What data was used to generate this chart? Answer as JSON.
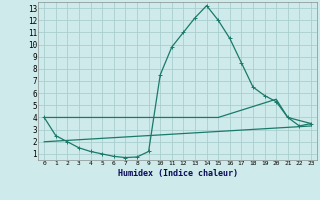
{
  "xlabel": "Humidex (Indice chaleur)",
  "bg_color": "#ceeaea",
  "grid_color": "#aacece",
  "line_color": "#1a7a6a",
  "xlim": [
    -0.5,
    23.5
  ],
  "ylim": [
    0.5,
    13.5
  ],
  "xticks": [
    0,
    1,
    2,
    3,
    4,
    5,
    6,
    7,
    8,
    9,
    10,
    11,
    12,
    13,
    14,
    15,
    16,
    17,
    18,
    19,
    20,
    21,
    22,
    23
  ],
  "yticks": [
    1,
    2,
    3,
    4,
    5,
    6,
    7,
    8,
    9,
    10,
    11,
    12,
    13
  ],
  "line1_x": [
    0,
    1,
    2,
    3,
    4,
    5,
    6,
    7,
    8,
    9,
    10,
    11,
    12,
    13,
    14,
    15,
    16,
    17,
    18,
    19,
    20,
    21,
    22,
    23
  ],
  "line1_y": [
    4.0,
    2.5,
    2.0,
    1.5,
    1.2,
    1.0,
    0.8,
    0.7,
    0.75,
    1.2,
    7.5,
    9.8,
    11.0,
    12.2,
    13.2,
    12.0,
    10.5,
    8.5,
    6.5,
    5.8,
    5.3,
    4.0,
    3.3,
    3.5
  ],
  "line2_x": [
    0,
    15,
    20,
    21,
    23
  ],
  "line2_y": [
    4.0,
    4.0,
    5.5,
    4.0,
    3.5
  ],
  "line3_x": [
    0,
    23
  ],
  "line3_y": [
    2.0,
    3.3
  ]
}
